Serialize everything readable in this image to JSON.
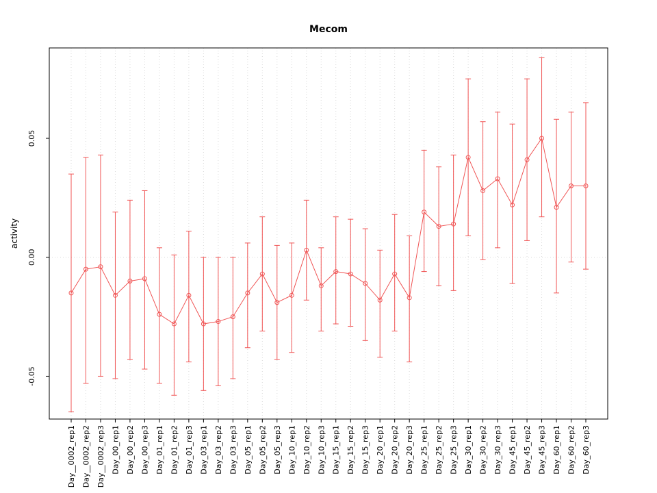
{
  "chart_data": {
    "type": "scatter",
    "title": "Mecom",
    "xlabel": "",
    "ylabel": "activity",
    "ylim": [
      -0.068,
      0.088
    ],
    "yticks": [
      -0.05,
      0.0,
      0.05
    ],
    "ytick_labels": [
      "-0.05",
      "0.00",
      "0.05"
    ],
    "grid": "dotted vertical gridline at each category, dotted horizontal line at 0",
    "legend": "none",
    "colors": {
      "series": "#f05454",
      "grid": "#d8d8d8",
      "axis": "#000000",
      "background": "#ffffff"
    },
    "marker": "open-circle",
    "error_bars": true,
    "categories": [
      "Day__0002_rep1",
      "Day__0002_rep2",
      "Day__0002_rep3",
      "Day_00_rep1",
      "Day_00_rep2",
      "Day_00_rep3",
      "Day_01_rep1",
      "Day_01_rep2",
      "Day_01_rep3",
      "Day_03_rep1",
      "Day_03_rep2",
      "Day_03_rep3",
      "Day_05_rep1",
      "Day_05_rep2",
      "Day_05_rep3",
      "Day_10_rep1",
      "Day_10_rep2",
      "Day_10_rep3",
      "Day_15_rep1",
      "Day_15_rep2",
      "Day_15_rep3",
      "Day_20_rep1",
      "Day_20_rep2",
      "Day_20_rep3",
      "Day_25_rep1",
      "Day_25_rep2",
      "Day_25_rep3",
      "Day_30_rep1",
      "Day_30_rep2",
      "Day_30_rep3",
      "Day_45_rep1",
      "Day_45_rep2",
      "Day_45_rep3",
      "Day_60_rep1",
      "Day_60_rep2",
      "Day_60_rep3"
    ],
    "series": [
      {
        "name": "activity",
        "values": [
          -0.015,
          -0.005,
          -0.004,
          -0.016,
          -0.01,
          -0.009,
          -0.024,
          -0.028,
          -0.016,
          -0.028,
          -0.027,
          -0.025,
          -0.015,
          -0.007,
          -0.019,
          -0.016,
          0.003,
          -0.012,
          -0.006,
          -0.007,
          -0.011,
          -0.018,
          -0.007,
          -0.017,
          0.019,
          0.013,
          0.014,
          0.042,
          0.028,
          0.033,
          0.022,
          0.041,
          0.05,
          0.021,
          0.03,
          0.03
        ],
        "upper": [
          0.035,
          0.042,
          0.043,
          0.019,
          0.024,
          0.028,
          0.004,
          0.001,
          0.011,
          0.0,
          0.0,
          0.0,
          0.006,
          0.017,
          0.005,
          0.006,
          0.024,
          0.004,
          0.017,
          0.016,
          0.012,
          0.003,
          0.018,
          0.009,
          0.045,
          0.038,
          0.043,
          0.075,
          0.057,
          0.061,
          0.056,
          0.075,
          0.084,
          0.058,
          0.061,
          0.065
        ],
        "lower": [
          -0.065,
          -0.053,
          -0.05,
          -0.051,
          -0.043,
          -0.047,
          -0.053,
          -0.058,
          -0.044,
          -0.056,
          -0.054,
          -0.051,
          -0.038,
          -0.031,
          -0.043,
          -0.04,
          -0.018,
          -0.031,
          -0.028,
          -0.029,
          -0.035,
          -0.042,
          -0.031,
          -0.044,
          -0.006,
          -0.012,
          -0.014,
          0.009,
          -0.001,
          0.004,
          -0.011,
          0.007,
          0.017,
          -0.015,
          -0.002,
          -0.005
        ]
      }
    ]
  }
}
